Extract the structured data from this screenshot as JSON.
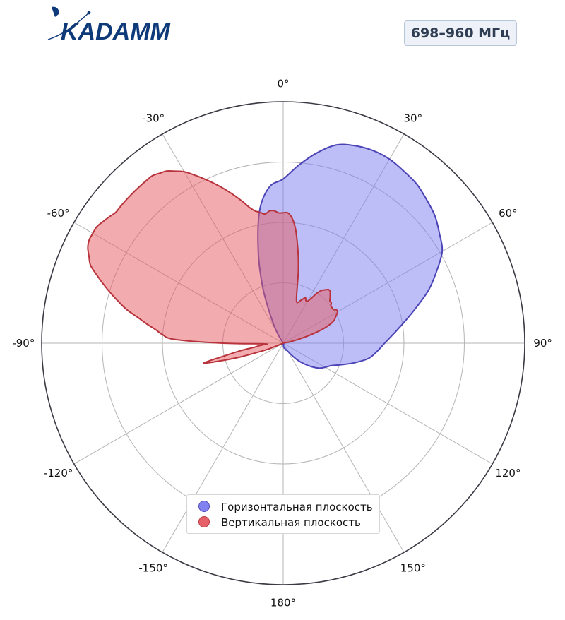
{
  "brand": {
    "name": "KADAMM",
    "color": "#0f3a7a"
  },
  "badge": {
    "text": "698–960 МГц"
  },
  "chart_data": {
    "type": "polar",
    "angle_unit": "deg",
    "angle_direction": "clockwise",
    "zero_location": "top",
    "theta_ticks": [
      0,
      30,
      60,
      90,
      120,
      150,
      180,
      -150,
      -120,
      -90,
      -60,
      -30
    ],
    "theta_tick_labels": [
      "0°",
      "30°",
      "60°",
      "90°",
      "120°",
      "150°",
      "180°",
      "-150°",
      "-120°",
      "-90°",
      "-60°",
      "-30°"
    ],
    "r_range": [
      0,
      1
    ],
    "r_gridlines": [
      0.25,
      0.5,
      0.75
    ],
    "grid": true,
    "legend_position": "bottom-center",
    "series": [
      {
        "name": "Горизонтальная плоскость",
        "color": "#7b7bf0",
        "line_color": "#4b44b6",
        "theta": [
          0,
          5,
          10,
          15,
          20,
          25,
          30,
          35,
          40,
          45,
          50,
          55,
          60,
          65,
          70,
          75,
          80,
          85,
          90,
          95,
          100,
          105,
          110,
          115,
          120,
          125,
          130,
          135,
          140,
          145,
          150,
          155,
          160,
          165,
          170,
          175,
          180,
          185,
          190,
          195,
          200,
          205,
          210,
          215,
          220,
          225,
          230,
          235,
          240,
          245,
          250,
          255,
          260,
          265,
          270,
          275,
          280,
          285,
          290,
          295,
          300,
          305,
          310,
          315,
          320,
          325,
          330,
          335,
          340,
          345,
          350,
          355
        ],
        "r": [
          0.68,
          0.74,
          0.8,
          0.85,
          0.87,
          0.88,
          0.88,
          0.87,
          0.86,
          0.84,
          0.82,
          0.79,
          0.76,
          0.7,
          0.64,
          0.57,
          0.51,
          0.46,
          0.42,
          0.39,
          0.36,
          0.31,
          0.26,
          0.22,
          0.2,
          0.18,
          0.15,
          0.12,
          0.09,
          0.06,
          0.04,
          0.03,
          0.03,
          0.02,
          0.02,
          0.01,
          0.0,
          0.0,
          0.0,
          0.0,
          0.0,
          0.0,
          0.0,
          0.0,
          0.0,
          0.0,
          0.0,
          0.0,
          0.0,
          0.0,
          0.0,
          0.0,
          0.0,
          0.0,
          0.0,
          0.0,
          0.0,
          0.0,
          0.0,
          0.0,
          0.0,
          0.0,
          0.0,
          0.0,
          0.0,
          0.0,
          0.05,
          0.12,
          0.25,
          0.4,
          0.56,
          0.65
        ]
      },
      {
        "name": "Вертикальная плоскость",
        "color": "#e55a60",
        "line_color": "#b8333b",
        "theta": [
          0,
          2,
          4,
          6,
          8,
          10,
          12,
          14,
          16,
          18,
          20,
          22,
          24,
          26,
          28,
          30,
          32,
          34,
          36,
          38,
          40,
          42,
          44,
          46,
          48,
          50,
          52,
          54,
          56,
          58,
          60,
          62,
          64,
          66,
          68,
          70,
          72,
          74,
          76,
          78,
          80,
          82,
          84,
          86,
          88,
          90,
          92,
          94,
          96,
          98,
          100,
          102,
          104,
          106,
          108,
          110,
          112,
          114,
          116,
          118,
          120,
          122,
          124,
          126,
          128,
          130,
          132,
          134,
          136,
          138,
          140,
          142,
          144,
          146,
          148,
          150,
          152,
          154,
          156,
          158,
          160,
          162,
          164,
          166,
          168,
          170,
          172,
          174,
          176,
          178,
          180,
          182,
          184,
          186,
          188,
          190,
          192,
          194,
          196,
          198,
          200,
          202,
          204,
          206,
          208,
          210,
          212,
          214,
          216,
          218,
          220,
          222,
          224,
          226,
          228,
          230,
          232,
          234,
          236,
          238,
          240,
          242,
          244,
          246,
          248,
          250,
          252,
          254,
          256,
          258,
          260,
          262,
          264,
          266,
          268,
          270,
          272,
          274,
          276,
          278,
          280,
          282,
          284,
          286,
          288,
          290,
          292,
          294,
          296,
          298,
          300,
          302,
          304,
          306,
          308,
          310,
          312,
          314,
          316,
          318,
          320,
          322,
          324,
          326,
          328,
          330,
          332,
          334,
          336,
          338,
          340,
          342,
          344,
          346,
          348,
          350,
          352,
          354,
          356,
          358
        ],
        "r": [
          0.54,
          0.54,
          0.52,
          0.48,
          0.42,
          0.36,
          0.3,
          0.24,
          0.2,
          0.18,
          0.18,
          0.19,
          0.2,
          0.21,
          0.2,
          0.2,
          0.22,
          0.25,
          0.27,
          0.28,
          0.29,
          0.29,
          0.28,
          0.27,
          0.26,
          0.26,
          0.25,
          0.25,
          0.25,
          0.26,
          0.26,
          0.25,
          0.24,
          0.23,
          0.21,
          0.18,
          0.14,
          0.1,
          0.06,
          0.03,
          0.0,
          0.0,
          0.0,
          0.0,
          0.0,
          0.0,
          0.0,
          0.0,
          0.0,
          0.0,
          0.0,
          0.0,
          0.0,
          0.0,
          0.0,
          0.0,
          0.0,
          0.0,
          0.0,
          0.0,
          0.0,
          0.0,
          0.0,
          0.0,
          0.0,
          0.0,
          0.0,
          0.0,
          0.0,
          0.0,
          0.0,
          0.0,
          0.0,
          0.0,
          0.0,
          0.0,
          0.0,
          0.0,
          0.0,
          0.0,
          0.0,
          0.0,
          0.0,
          0.0,
          0.0,
          0.0,
          0.0,
          0.0,
          0.0,
          0.0,
          0.0,
          0.0,
          0.0,
          0.0,
          0.0,
          0.0,
          0.0,
          0.0,
          0.0,
          0.0,
          0.0,
          0.0,
          0.0,
          0.0,
          0.0,
          0.0,
          0.0,
          0.0,
          0.0,
          0.0,
          0.0,
          0.0,
          0.0,
          0.0,
          0.0,
          0.0,
          0.0,
          0.0,
          0.0,
          0.0,
          0.0,
          0.0,
          0.0,
          0.0,
          0.06,
          0.1,
          0.18,
          0.26,
          0.34,
          0.24,
          0.18,
          0.12,
          0.1,
          0.08,
          0.08,
          0.25,
          0.45,
          0.5,
          0.53,
          0.57,
          0.61,
          0.66,
          0.7,
          0.74,
          0.78,
          0.82,
          0.86,
          0.88,
          0.9,
          0.91,
          0.91,
          0.91,
          0.9,
          0.89,
          0.88,
          0.88,
          0.88,
          0.88,
          0.88,
          0.88,
          0.88,
          0.88,
          0.87,
          0.86,
          0.84,
          0.82,
          0.79,
          0.76,
          0.73,
          0.7,
          0.67,
          0.64,
          0.61,
          0.58,
          0.56,
          0.55,
          0.54,
          0.55,
          0.55,
          0.54
        ]
      }
    ]
  }
}
